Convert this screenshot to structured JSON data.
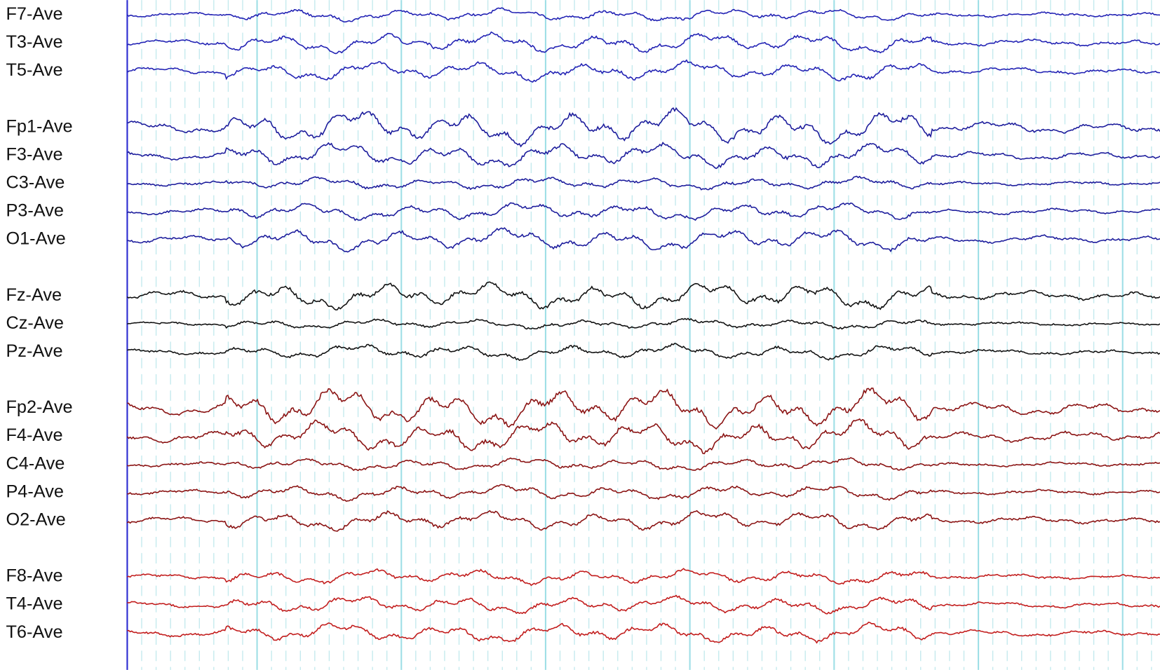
{
  "channels": [
    {
      "label": "F7-Ave",
      "color": "#2222b4"
    },
    {
      "label": "T3-Ave",
      "color": "#2222b4"
    },
    {
      "label": "T5-Ave",
      "color": "#2222b4"
    },
    {
      "label": "Fp1-Ave",
      "color": "#1c1c9c"
    },
    {
      "label": "F3-Ave",
      "color": "#1c1c9c"
    },
    {
      "label": "C3-Ave",
      "color": "#1c1c9c"
    },
    {
      "label": "P3-Ave",
      "color": "#1c1c9c"
    },
    {
      "label": "O1-Ave",
      "color": "#1c1c9c"
    },
    {
      "label": "Fz-Ave",
      "color": "#111111"
    },
    {
      "label": "Cz-Ave",
      "color": "#111111"
    },
    {
      "label": "Pz-Ave",
      "color": "#111111"
    },
    {
      "label": "Fp2-Ave",
      "color": "#8a1212"
    },
    {
      "label": "F4-Ave",
      "color": "#8a1212"
    },
    {
      "label": "C4-Ave",
      "color": "#8a1212"
    },
    {
      "label": "P4-Ave",
      "color": "#8a1212"
    },
    {
      "label": "O2-Ave",
      "color": "#8a1212"
    },
    {
      "label": "F8-Ave",
      "color": "#c21c1c"
    },
    {
      "label": "T4-Ave",
      "color": "#c21c1c"
    },
    {
      "label": "T6-Ave",
      "color": "#c21c1c"
    }
  ]
}
